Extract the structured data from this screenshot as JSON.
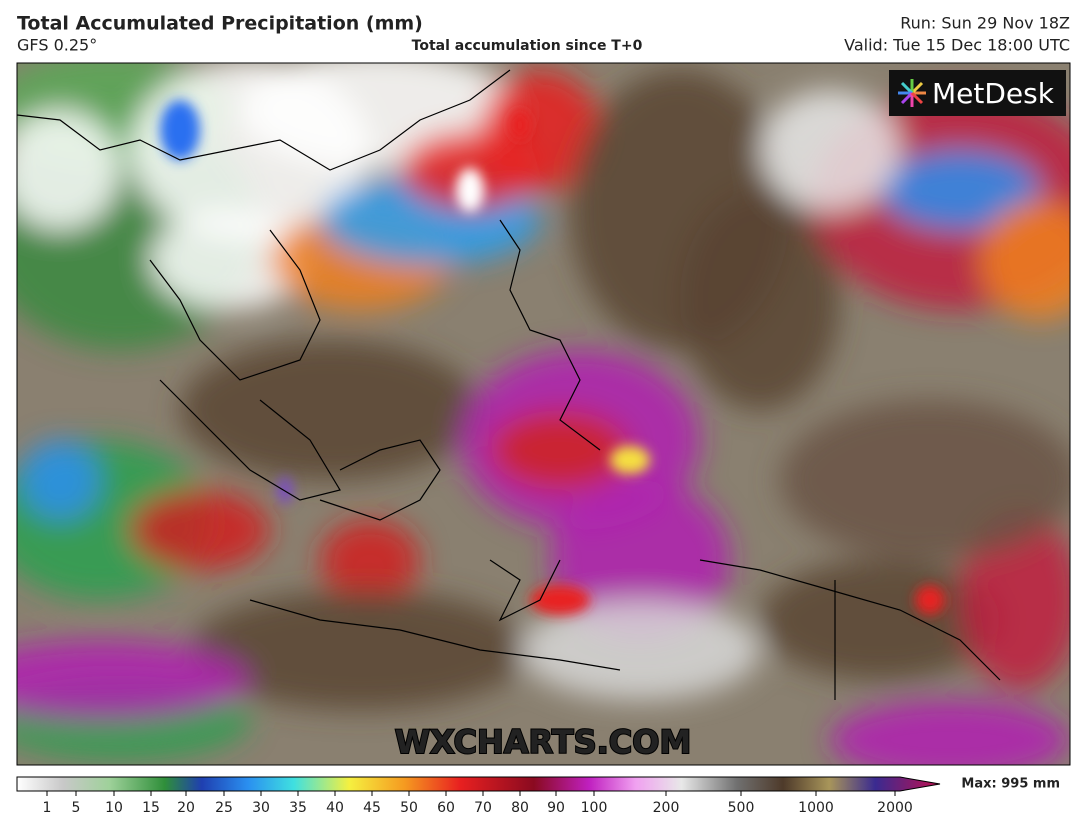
{
  "header": {
    "title": "Total Accumulated Precipitation (mm)",
    "model": "GFS 0.25°",
    "subtitle": "Total accumulation since T+0",
    "run": "Run: Sun 29 Nov 18Z",
    "valid": "Valid: Tue 15 Dec 18:00 UTC"
  },
  "logo": "MetDesk",
  "watermark": "WXCHARTS.COM",
  "colorbar": {
    "ticks": [
      1,
      5,
      10,
      15,
      20,
      25,
      30,
      35,
      40,
      45,
      50,
      60,
      70,
      80,
      90,
      100,
      200,
      500,
      1000,
      2000
    ],
    "max": "Max: 995 mm"
  }
}
